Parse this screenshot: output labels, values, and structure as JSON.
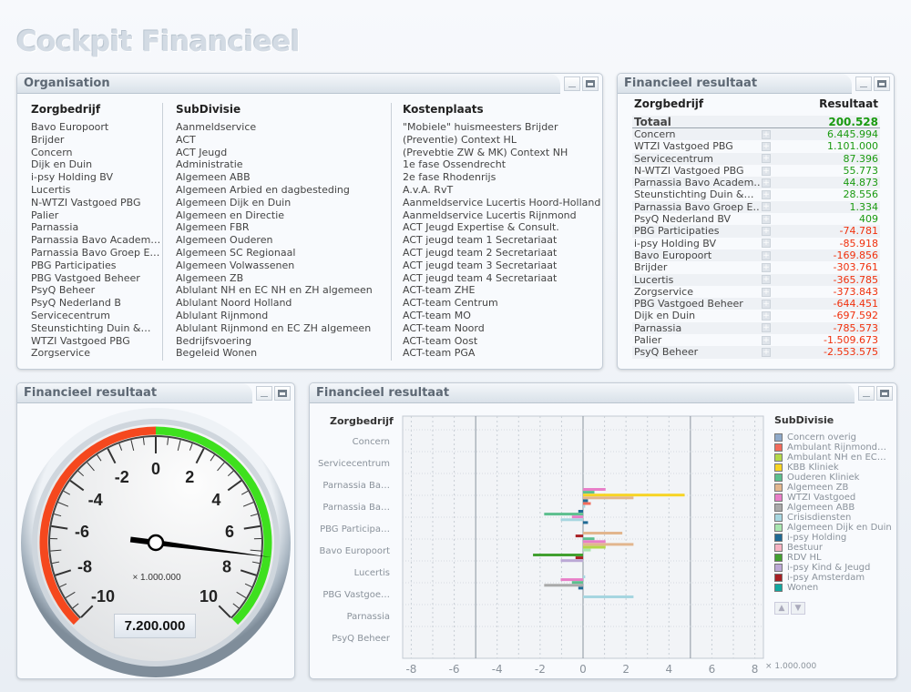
{
  "app_title": "Cockpit Financieel",
  "organisation": {
    "title": "Organisation",
    "columns": [
      {
        "header": "Zorgbedrijf",
        "items": [
          "Bavo Europoort",
          "Brijder",
          "Concern",
          "Dijk en Duin",
          "i-psy Holding BV",
          "Lucertis",
          "N-WTZI Vastgoed PBG",
          "Palier",
          "Parnassia",
          "Parnassia Bavo Academ…",
          "Parnassia Bavo Groep E…",
          "PBG Participaties",
          "PBG Vastgoed Beheer",
          "PsyQ Beheer",
          "PsyQ Nederland B",
          "Servicecentrum",
          "Steunstichting Duin &…",
          "WTZI Vastgoed PBG",
          "Zorgservice"
        ]
      },
      {
        "header": "SubDivisie",
        "items": [
          "Aanmeldservice",
          "ACT",
          "ACT Jeugd",
          "Administratie",
          "Algemeen ABB",
          "Algemeen Arbied en dagbesteding",
          "Algemeen Dijk en Duin",
          "Algemeen  en Directie",
          "Algemeen FBR",
          "Algemeen Ouderen",
          "Algemeen SC Regionaal",
          "Algemeen Volwassenen",
          "Algemeen ZB",
          "Ablulant NH en EC NH en ZH algemeen",
          "Ablulant Noord Holland",
          "Ablulant Rijnmond",
          "Ablulant Rijnmond en EC ZH algemeen",
          "Bedrijfsvoering",
          "Begeleid Wonen"
        ]
      },
      {
        "header": "Kostenplaats",
        "items": [
          "\"Mobiele\" huismeesters Brijder",
          "(Preventie) Context HL",
          "(Prevebtie ZW & MK) Context NH",
          "1e fase Ossendrecht",
          "2e fase Rhodenrijs",
          "A.v.A. RvT",
          "Aanmeldservice Lucertis Hoord-Holland",
          "Aanmeldservice Lucertis Rijnmond",
          "ACT Jeugd Expertise & Consult.",
          "ACT jeugd team 1 Secretariaat",
          "ACT jeugd team 2 Secretariaat",
          "ACT jeugd team 3 Secretariaat",
          "ACT jeugd team 4 Secretariaat",
          "ACT-team ZHE",
          "ACT-team Centrum",
          "ACT-team MO",
          "ACT-team Noord",
          "ACT-team Oost",
          "ACT-team PGA"
        ]
      }
    ]
  },
  "result_table": {
    "title": "Financieel resultaat",
    "col_name": "Zorgbedrijf",
    "col_value": "Resultaat",
    "total_label": "Totaal",
    "total_value": "200.528",
    "rows": [
      [
        "Concern",
        "6.445.994"
      ],
      [
        "WTZI Vastgoed PBG",
        "1.101.000"
      ],
      [
        "Servicecentrum",
        "87.396"
      ],
      [
        "N-WTZI Vastgoed PBG",
        "55.773"
      ],
      [
        "Parnassia Bavo Academ…",
        "44.873"
      ],
      [
        "Steunstichting Duin &…",
        "28.556"
      ],
      [
        "Parnassia Bavo Groep E…",
        "1.334"
      ],
      [
        "PsyQ Nederland BV",
        "409"
      ],
      [
        "PBG Participaties",
        "-74.781"
      ],
      [
        "i-psy Holding BV",
        "-85.918"
      ],
      [
        "Bavo Europoort",
        "-169.856"
      ],
      [
        "Brijder",
        "-303.761"
      ],
      [
        "Lucertis",
        "-365.785"
      ],
      [
        "Zorgservice",
        "-373.843"
      ],
      [
        "PBG Vastgoed Beheer",
        "-644.451"
      ],
      [
        "Dijk en Duin",
        "-697.592"
      ],
      [
        "Parnassia",
        "-785.573"
      ],
      [
        "Palier",
        "-1.509.673"
      ],
      [
        "PsyQ Beheer",
        "-2.553.575"
      ]
    ]
  },
  "gauge": {
    "title": "Financieel resultaat",
    "min": -10,
    "max": 10,
    "value": 7.2,
    "tick_labels": [
      "-10",
      "-8",
      "-6",
      "-4",
      "-2",
      "0",
      "2",
      "4",
      "6",
      "8",
      "10"
    ],
    "unit_label": "× 1.000.000",
    "readout": "7.200.000",
    "colors": {
      "negative": "#f5481e",
      "positive": "#3ee01e"
    }
  },
  "bar_chart": {
    "title": "Financieel resultaat"
  },
  "chart_data": {
    "type": "bar",
    "orientation": "horizontal",
    "ylabel": "Zorgbedrijf",
    "legend_title": "SubDivisie",
    "unit_label": "× 1.000.000",
    "xlim": [
      -8.4,
      8.4
    ],
    "x_ticks": [
      "-8",
      "-6",
      "-4",
      "-2",
      "0",
      "2",
      "4",
      "6",
      "8"
    ],
    "grid": true,
    "legend_position": "right",
    "categories": [
      "Concern",
      "Servicecentrum",
      "Parnassia Ba…",
      "Parnassia Ba…",
      "PBG Participa…",
      "Bavo Europoort",
      "Lucertis",
      "PBG Vastgoe…",
      "Parnassia",
      "PsyQ Beheer"
    ],
    "series": [
      {
        "name": "Concern overig",
        "color": "#8ea9c9"
      },
      {
        "name": "Ambulant Rijnmond…",
        "color": "#f26b5b"
      },
      {
        "name": "Ambulant NH en EC…",
        "color": "#b4d84a"
      },
      {
        "name": "KBB Kliniek",
        "color": "#f7d424"
      },
      {
        "name": "Ouderen Kliniek",
        "color": "#5cbf8e"
      },
      {
        "name": "Algemeen ZB",
        "color": "#e2b68e"
      },
      {
        "name": "WTZI Vastgoed",
        "color": "#e87ec8"
      },
      {
        "name": "Algemeen ABB",
        "color": "#a9a9a9"
      },
      {
        "name": "Crisisdiensten",
        "color": "#a6d6e0"
      },
      {
        "name": "Algemeen Dijk en Duin",
        "color": "#a8e6b0"
      },
      {
        "name": "i-psy Holding",
        "color": "#1f6a94"
      },
      {
        "name": "Bestuur",
        "color": "#f7b2c2"
      },
      {
        "name": "RDV HL",
        "color": "#42a030"
      },
      {
        "name": "i-psy Kind & Jeugd",
        "color": "#bba8d6"
      },
      {
        "name": "i-psy Amsterdam",
        "color": "#a82024"
      },
      {
        "name": "Wonen",
        "color": "#12a8a0"
      }
    ],
    "bars": [
      {
        "category": 3,
        "series": "WTZI Vastgoed",
        "value": 1.05
      },
      {
        "category": 3,
        "series": "Ouderen Kliniek",
        "value": 0.53
      },
      {
        "category": 3,
        "series": "KBB Kliniek",
        "value": 4.73
      },
      {
        "category": 3,
        "series": "Algemeen ZB",
        "value": 2.35
      },
      {
        "category": 3,
        "series": "i-psy Holding",
        "value": 0.23
      },
      {
        "category": 3,
        "series": "Ambulant Rijnmond…",
        "value": 0.36
      },
      {
        "category": 3,
        "series": "Crisisdiensten",
        "value": 0.1
      },
      {
        "category": 4,
        "series": "i-psy Holding",
        "value": -0.22
      },
      {
        "category": 4,
        "series": "Ouderen Kliniek",
        "value": -1.81
      },
      {
        "category": 4,
        "series": "WTZI Vastgoed",
        "value": -0.52
      },
      {
        "category": 4,
        "series": "Crisisdiensten",
        "value": -1.04
      },
      {
        "category": 4,
        "series": "i-psy Holding",
        "value": 0.23
      },
      {
        "category": 5,
        "series": "Algemeen ZB",
        "value": 1.83
      },
      {
        "category": 5,
        "series": "i-psy Amsterdam",
        "value": -0.35
      },
      {
        "category": 5,
        "series": "Ouderen Kliniek",
        "value": 0.53
      },
      {
        "category": 5,
        "series": "WTZI Vastgoed",
        "value": 1.05
      },
      {
        "category": 5,
        "series": "Algemeen ZB",
        "value": 2.35
      },
      {
        "category": 5,
        "series": "Ambulant NH en EC…",
        "value": 1.05
      },
      {
        "category": 5,
        "series": "Algemeen Dijk en Duin",
        "value": 0.36
      },
      {
        "category": 6,
        "series": "RDV HL",
        "value": -2.33
      },
      {
        "category": 6,
        "series": "i-psy Amsterdam",
        "value": -0.35
      },
      {
        "category": 6,
        "series": "i-psy Kind & Jeugd",
        "value": -1.04
      },
      {
        "category": 7,
        "series": "Crisisdiensten",
        "value": 0.1
      },
      {
        "category": 7,
        "series": "WTZI Vastgoed",
        "value": -1.04
      },
      {
        "category": 7,
        "series": "Ouderen Kliniek",
        "value": -0.52
      },
      {
        "category": 7,
        "series": "Algemeen ABB",
        "value": -1.81
      },
      {
        "category": 7,
        "series": "i-psy Holding",
        "value": -0.22
      },
      {
        "category": 8,
        "series": "Crisisdiensten",
        "value": 2.35
      }
    ]
  }
}
